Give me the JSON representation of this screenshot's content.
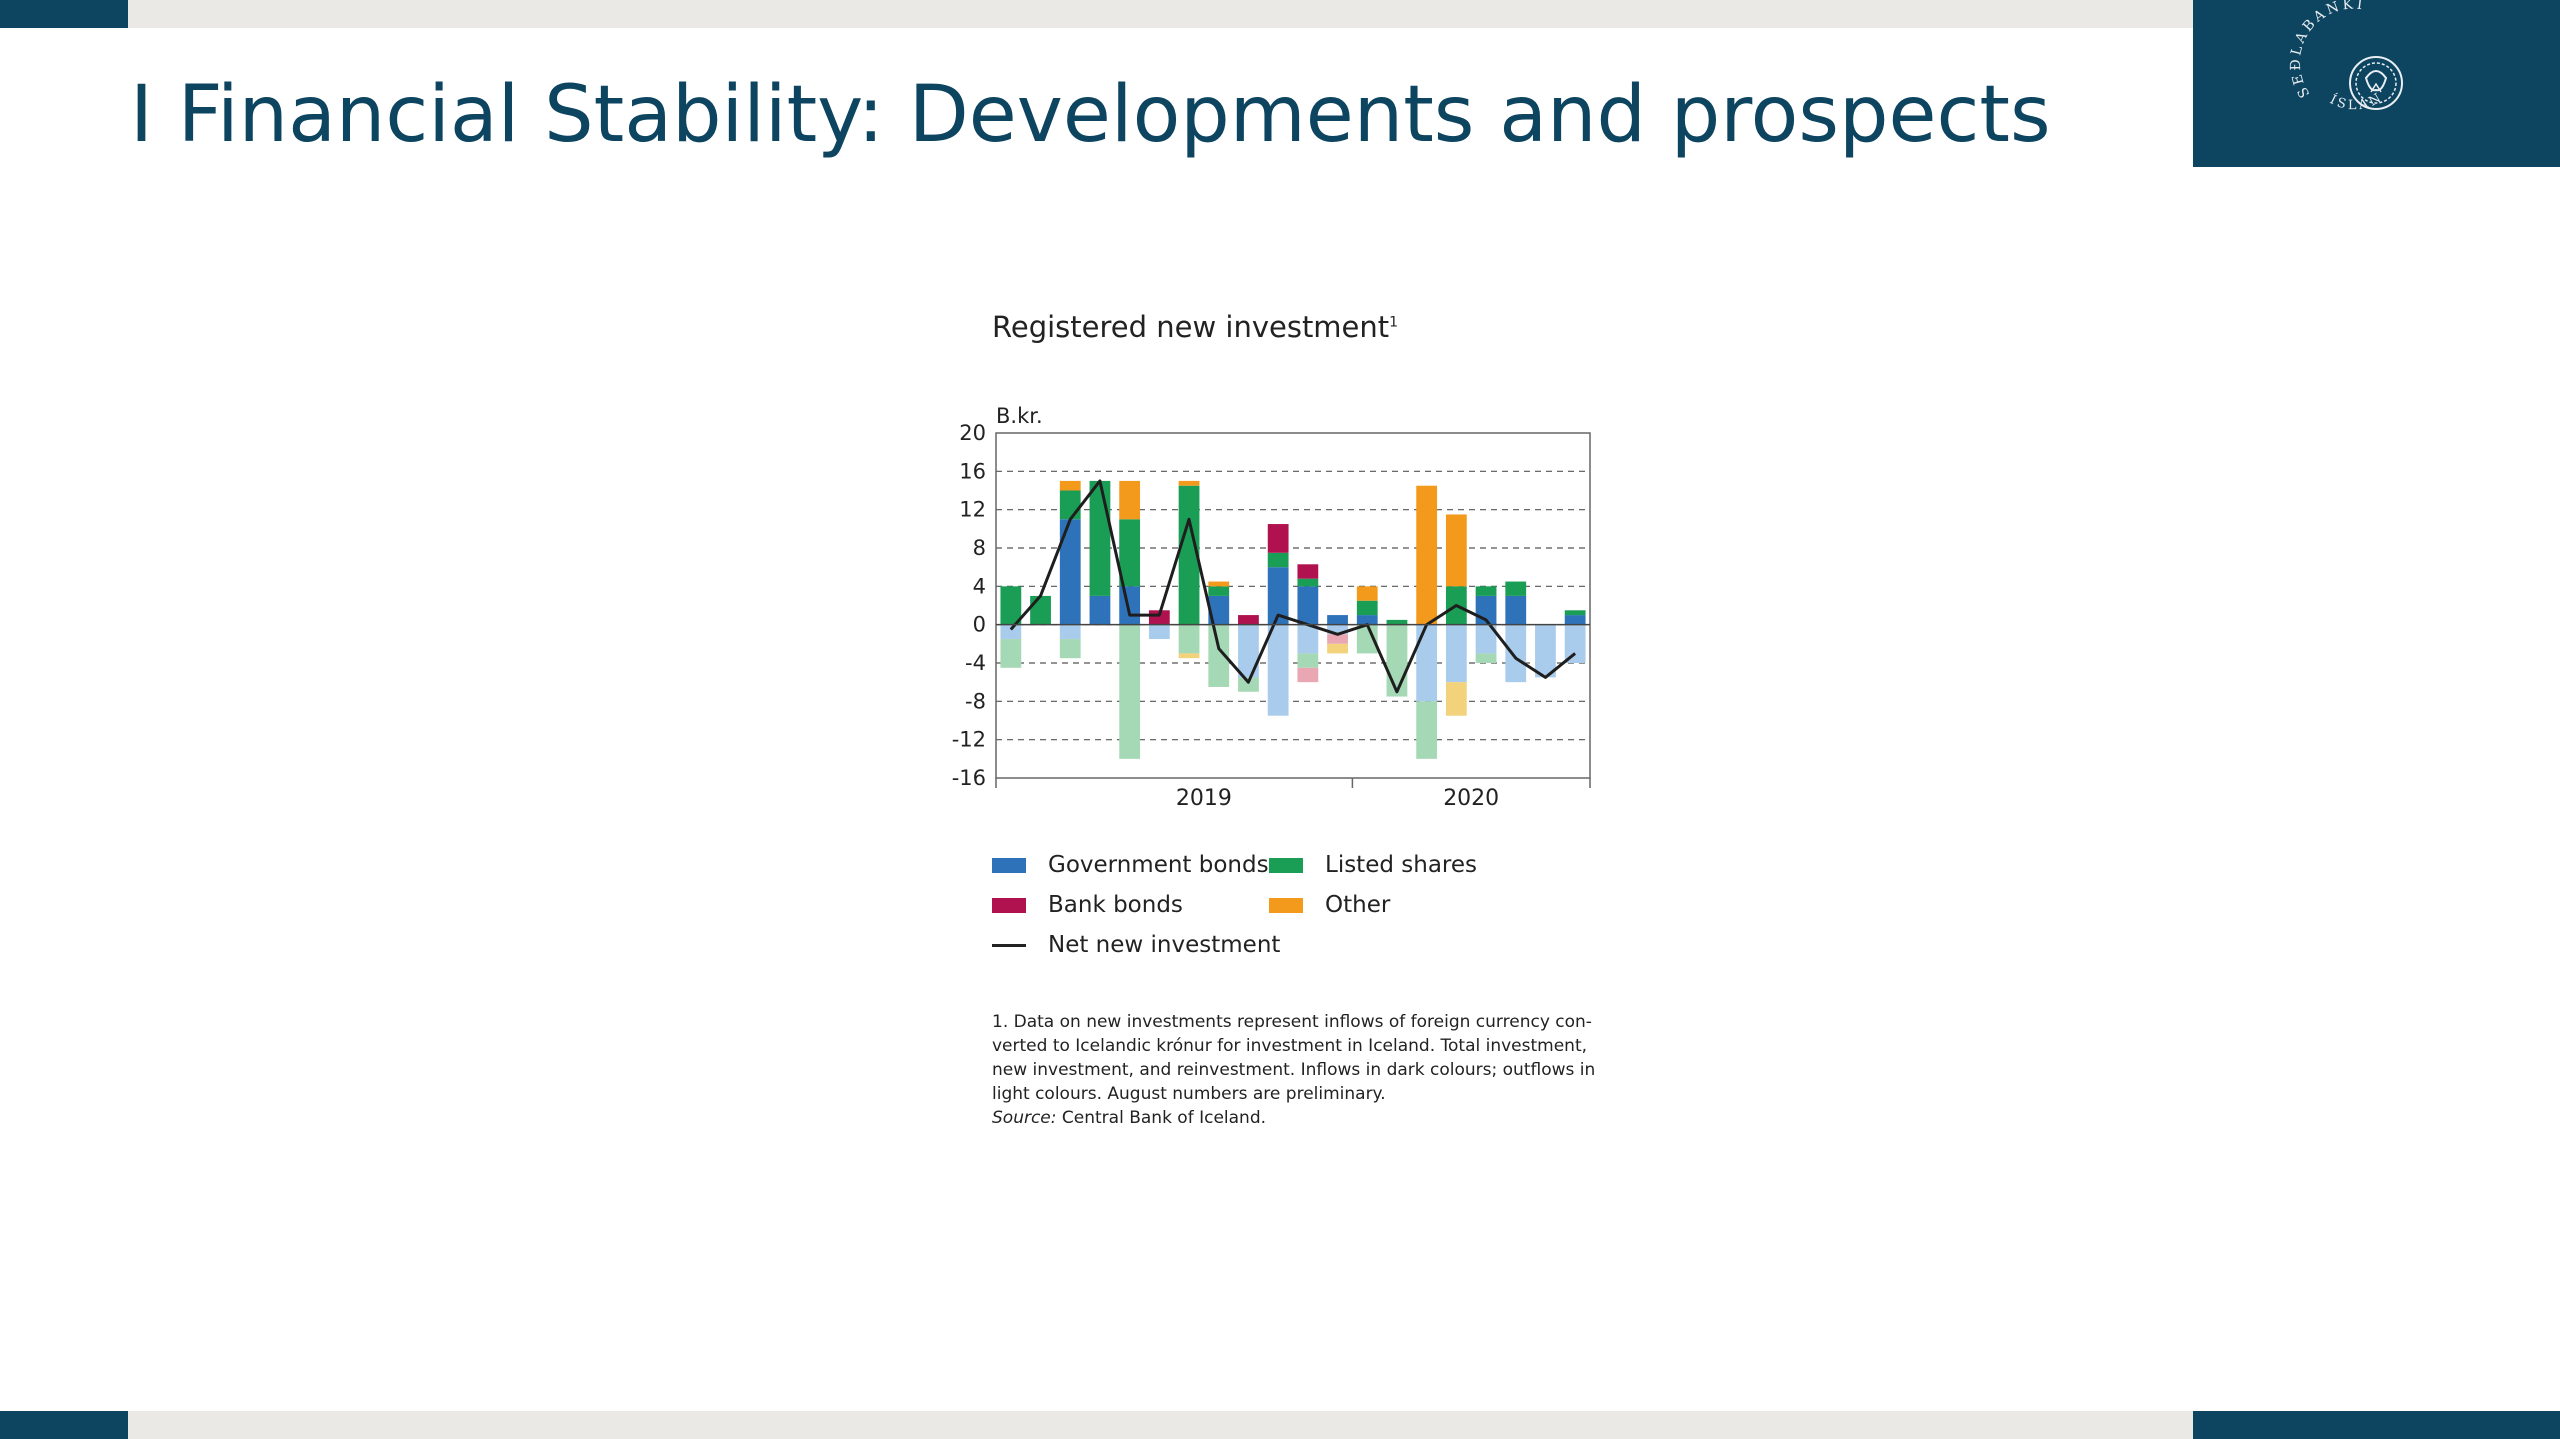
{
  "slide": {
    "title": "I Financial Stability: Developments and prospects",
    "logo_text": "SEÐLABANKI ÍSLANDS"
  },
  "chart_data": {
    "type": "bar",
    "title": "Registered new investment",
    "title_footnote_mark": "1",
    "ylabel": "B.kr.",
    "ylim": [
      -16,
      20
    ],
    "yticks": [
      20,
      16,
      12,
      8,
      4,
      0,
      -4,
      -8,
      -12,
      -16
    ],
    "grid": true,
    "x_year_labels": [
      {
        "label": "2019",
        "month_index": 6.5
      },
      {
        "label": "2020",
        "month_index": 15.5
      }
    ],
    "year_boundary_month_index": 11.5,
    "months": 20,
    "inflows": {
      "gov": [
        0,
        0,
        11,
        3,
        4,
        0,
        0,
        3,
        0,
        6,
        4,
        1,
        1,
        0,
        0,
        0,
        3,
        3,
        0,
        1
      ],
      "listed": [
        4,
        3,
        3,
        12,
        7,
        0,
        14.5,
        1,
        0,
        1.5,
        0.8,
        0,
        1.5,
        0.5,
        0,
        4,
        1,
        1.5,
        0,
        0.5
      ],
      "bank": [
        0,
        0,
        0,
        0,
        0,
        1.5,
        0,
        0,
        1,
        3,
        1.5,
        0,
        0,
        0,
        0,
        0,
        0,
        0,
        0,
        0
      ],
      "other": [
        0,
        0,
        1,
        0,
        4,
        0,
        0.5,
        0.5,
        0,
        0,
        0,
        0,
        1.5,
        0,
        14.5,
        7.5,
        0,
        0,
        0,
        0
      ]
    },
    "outflows": {
      "gov": [
        -1.5,
        0,
        -1.5,
        0,
        0,
        -1.5,
        0,
        0,
        -5.5,
        -9.5,
        -3,
        -1,
        0,
        0,
        -8,
        -6,
        -3,
        -6,
        -5.5,
        -4
      ],
      "listed": [
        -3,
        0,
        -2,
        0,
        -14,
        0,
        -3,
        -6.5,
        -1.5,
        0,
        -1.5,
        0,
        -3,
        -7.5,
        -6,
        0,
        -1,
        0,
        0,
        0
      ],
      "bank": [
        0,
        0,
        0,
        0,
        0,
        0,
        0,
        0,
        0,
        0,
        -1.5,
        -1,
        0,
        0,
        0,
        0,
        0,
        0,
        0,
        0
      ],
      "other": [
        0,
        0,
        0,
        0,
        0,
        0,
        -0.5,
        0,
        0,
        0,
        0,
        -1,
        0,
        0,
        0,
        -3.5,
        0,
        0,
        0,
        0
      ]
    },
    "net": [
      -0.5,
      3,
      11,
      15,
      1,
      1,
      11,
      -2.5,
      -6,
      1,
      0,
      -1,
      0,
      -7,
      0,
      2,
      0.5,
      -3.5,
      -5.5,
      -3
    ],
    "colors": {
      "gov_dark": "#2e73ba",
      "gov_light": "#a9cced",
      "listed_dark": "#1a9e55",
      "listed_light": "#a5d8b5",
      "bank_dark": "#b0124f",
      "bank_light": "#e9a7b3",
      "other_dark": "#f39a1c",
      "other_light": "#f2d27a",
      "net_line": "#1e1e1e",
      "grid": "#555555",
      "axis": "#666666"
    }
  },
  "legend": {
    "gov": "Government bonds",
    "listed": "Listed shares",
    "bank": "Bank bonds",
    "other": "Other",
    "net": "Net new investment"
  },
  "footnote": {
    "line1": "1. Data on new investments represent inflows of foreign currency con-",
    "line2": "verted to Icelandic krónur for investment in Iceland. Total investment,",
    "line3": "new investment, and reinvestment. Inflows in dark colours; outflows in",
    "line4": "light colours. August numbers are preliminary.",
    "source_label": "Source:",
    "source_text": "Central Bank of Iceland."
  }
}
